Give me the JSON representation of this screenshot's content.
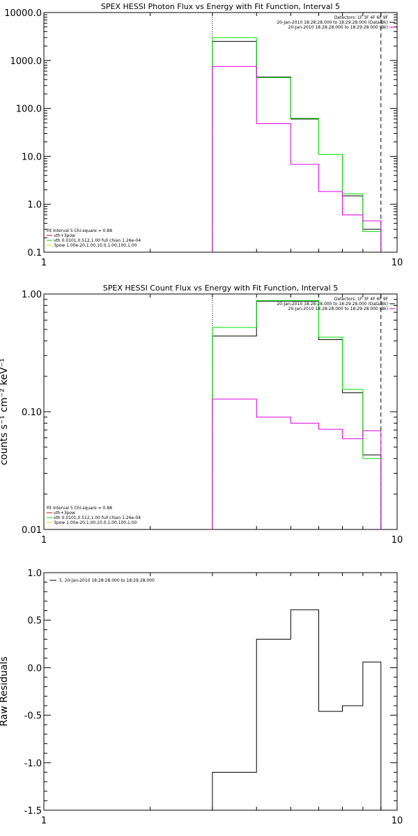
{
  "chart_data": [
    {
      "type": "line",
      "step": true,
      "title": "SPEX HESSI Photon Flux vs Energy with Fit Function, Interval 5",
      "xscale": "log",
      "yscale": "log",
      "xlim": [
        1,
        10
      ],
      "ylim": [
        0.1,
        10000
      ],
      "xticks": [
        "1",
        "10"
      ],
      "yticks": [
        "0.1",
        "1.0",
        "10.0",
        "100.0",
        "1000.0",
        "10000.0"
      ],
      "ylabel": "",
      "vlines": [
        {
          "x": 3.0,
          "style": "dotted"
        },
        {
          "x": 9.0,
          "style": "dashed"
        }
      ],
      "bin_edges": [
        3.0,
        4.0,
        5.0,
        6.0,
        7.0,
        8.0,
        9.0
      ],
      "series": [
        {
          "color": "#000000",
          "values": [
            2500,
            450,
            60,
            11,
            1.5,
            0.3
          ]
        },
        {
          "color": "#00dd00",
          "values": [
            3000,
            440,
            62,
            11,
            1.65,
            0.27
          ]
        },
        {
          "color": "#dd00dd",
          "values": [
            750,
            48,
            6.8,
            1.85,
            0.6,
            0.45
          ]
        }
      ],
      "legend_top": {
        "header": "Detectors: 1F 3F 4F 6F 9F",
        "entries": [
          {
            "text": "20-Jan-2010 18:28:28.000 to 18:29:28.000 (Data-Bk)",
            "color": "#000000"
          },
          {
            "text": "20-Jan-2010 18:28:28.000 to 18:29:28.000 (Bk)",
            "color": "#dd00dd"
          }
        ]
      },
      "legend_bottom": {
        "header": "Fit Interval 5   Chi-square = 0.88",
        "entries": [
          {
            "text": "vth+3pow",
            "color": "#dd0000"
          },
          {
            "text": "vth 0.0101,0.512,1.00  full chian 1.26e-04",
            "color": "#00dd00"
          },
          {
            "text": "3pow 1.00e-20,1.00,10.0,1.00,100,1.00",
            "color": "#dddd00"
          }
        ]
      }
    },
    {
      "type": "line",
      "step": true,
      "title": "SPEX HESSI Count Flux vs Energy with Fit Function, Interval 5",
      "xscale": "log",
      "yscale": "log",
      "xlim": [
        1,
        10
      ],
      "ylim": [
        0.01,
        1.0
      ],
      "xticks": [
        "1",
        "10"
      ],
      "yticks": [
        "0.01",
        "0.10",
        "1.00"
      ],
      "ylabel": "counts s⁻¹ cm⁻² keV⁻¹",
      "vlines": [
        {
          "x": 3.0,
          "style": "dotted"
        },
        {
          "x": 9.0,
          "style": "dashed"
        }
      ],
      "bin_edges": [
        3.0,
        4.0,
        5.0,
        6.0,
        7.0,
        8.0,
        9.0
      ],
      "series": [
        {
          "color": "#000000",
          "values": [
            0.44,
            0.87,
            0.87,
            0.41,
            0.145,
            0.043
          ]
        },
        {
          "color": "#00dd00",
          "values": [
            0.52,
            0.88,
            0.88,
            0.43,
            0.155,
            0.04
          ]
        },
        {
          "color": "#dd00dd",
          "values": [
            0.128,
            0.09,
            0.08,
            0.071,
            0.059,
            0.069
          ]
        }
      ],
      "legend_top": {
        "header": "Detectors: 1F 3F 4F 6F 9F",
        "entries": [
          {
            "text": "20-Jan-2010 18:28:28.000 to 18:29:28.000 (Data-Bk)",
            "color": "#000000"
          },
          {
            "text": "20-Jan-2010 18:28:28.000 to 18:29:28.000 (Bk)",
            "color": "#dd00dd"
          }
        ]
      },
      "legend_bottom": {
        "header": "Fit Interval 5   Chi-square = 0.88",
        "entries": [
          {
            "text": "vth+3pow",
            "color": "#dd0000"
          },
          {
            "text": "vth 0.0101,0.512,1.00  full chian 1.26e-04",
            "color": "#00dd00"
          },
          {
            "text": "3pow 1.00e-20,1.00,10.0,1.00,100,1.00",
            "color": "#dddd00"
          }
        ]
      }
    },
    {
      "type": "line",
      "step": true,
      "title": "",
      "xscale": "log",
      "yscale": "linear",
      "xlim": [
        1,
        10
      ],
      "ylim": [
        -1.5,
        1.0
      ],
      "xticks": [
        "1",
        "10"
      ],
      "yticks": [
        "-1.5",
        "-1.0",
        "-0.5",
        "0.0",
        "0.5",
        "1.0"
      ],
      "ylabel": "Raw Residuals",
      "bin_edges": [
        3.0,
        4.0,
        5.0,
        6.0,
        7.0,
        8.0,
        9.0
      ],
      "series": [
        {
          "color": "#000000",
          "values": [
            -1.1,
            0.3,
            0.61,
            -0.46,
            -0.4,
            0.06
          ]
        }
      ],
      "legend_top": {
        "header": "",
        "entries": [
          {
            "text": "5, 20-Jan-2010 18:28:28.000 to 18:29:28.000",
            "color": "#000000"
          }
        ]
      }
    }
  ]
}
